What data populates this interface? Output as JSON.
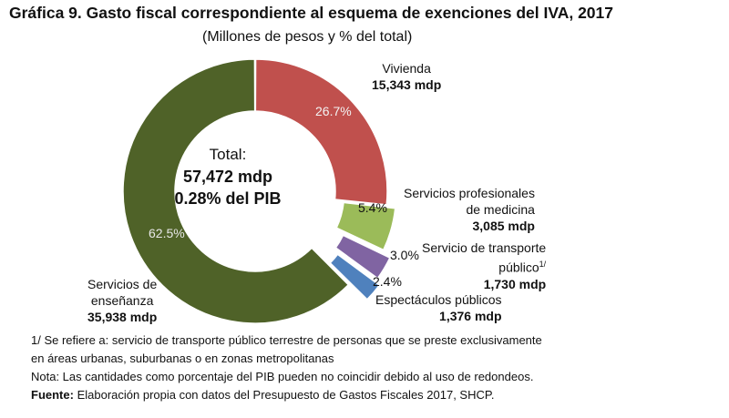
{
  "title": "Gráfica 9. Gasto fiscal correspondiente al esquema de exenciones del IVA, 2017",
  "subtitle": "(Millones de pesos y % del total)",
  "center": {
    "line1": "Total:",
    "line2": "57,472 mdp",
    "line3": "0.28% del PIB"
  },
  "chart_data": {
    "type": "pie",
    "style": "donut",
    "title": "Gráfica 9. Gasto fiscal correspondiente al esquema de exenciones del IVA, 2017",
    "subtitle": "(Millones de pesos y % del total)",
    "legend": "none",
    "slices": [
      {
        "name_lines": [
          "Vivienda"
        ],
        "value_label": "15,343 mdp",
        "value": 15343,
        "percent": 26.7,
        "percent_label": "26.7%",
        "color": "#c0504d"
      },
      {
        "name_lines": [
          "Servicios profesionales",
          "de medicina"
        ],
        "value_label": "3,085 mdp",
        "value": 3085,
        "percent": 5.4,
        "percent_label": "5.4%",
        "color": "#9bbb59"
      },
      {
        "name_lines": [
          "Servicio de transporte",
          "público"
        ],
        "name_sup": "1/",
        "value_label": "1,730 mdp",
        "value": 1730,
        "percent": 3.0,
        "percent_label": "3.0%",
        "color": "#8064a2"
      },
      {
        "name_lines": [
          "Espectáculos públicos"
        ],
        "value_label": "1,376 mdp",
        "value": 1376,
        "percent": 2.4,
        "percent_label": "2.4%",
        "color": "#4f81bd"
      },
      {
        "name_lines": [
          "Servicios de",
          "enseñanza"
        ],
        "value_label": "35,938 mdp",
        "value": 35938,
        "percent": 62.5,
        "percent_label": "62.5%",
        "color": "#4f6228"
      }
    ]
  },
  "notes": {
    "note1_line1": "1/ Se refiere a: servicio de transporte público terrestre de personas que se preste exclusivamente",
    "note1_line2": "en áreas urbanas, suburbanas o en zonas metropolitanas",
    "note2": "Nota: Las cantidades como porcentaje del PIB pueden no coincidir debido al uso de redondeos.",
    "source_label": "Fuente:",
    "source_text": " Elaboración propia con datos del Presupuesto de Gastos Fiscales 2017, SHCP."
  }
}
